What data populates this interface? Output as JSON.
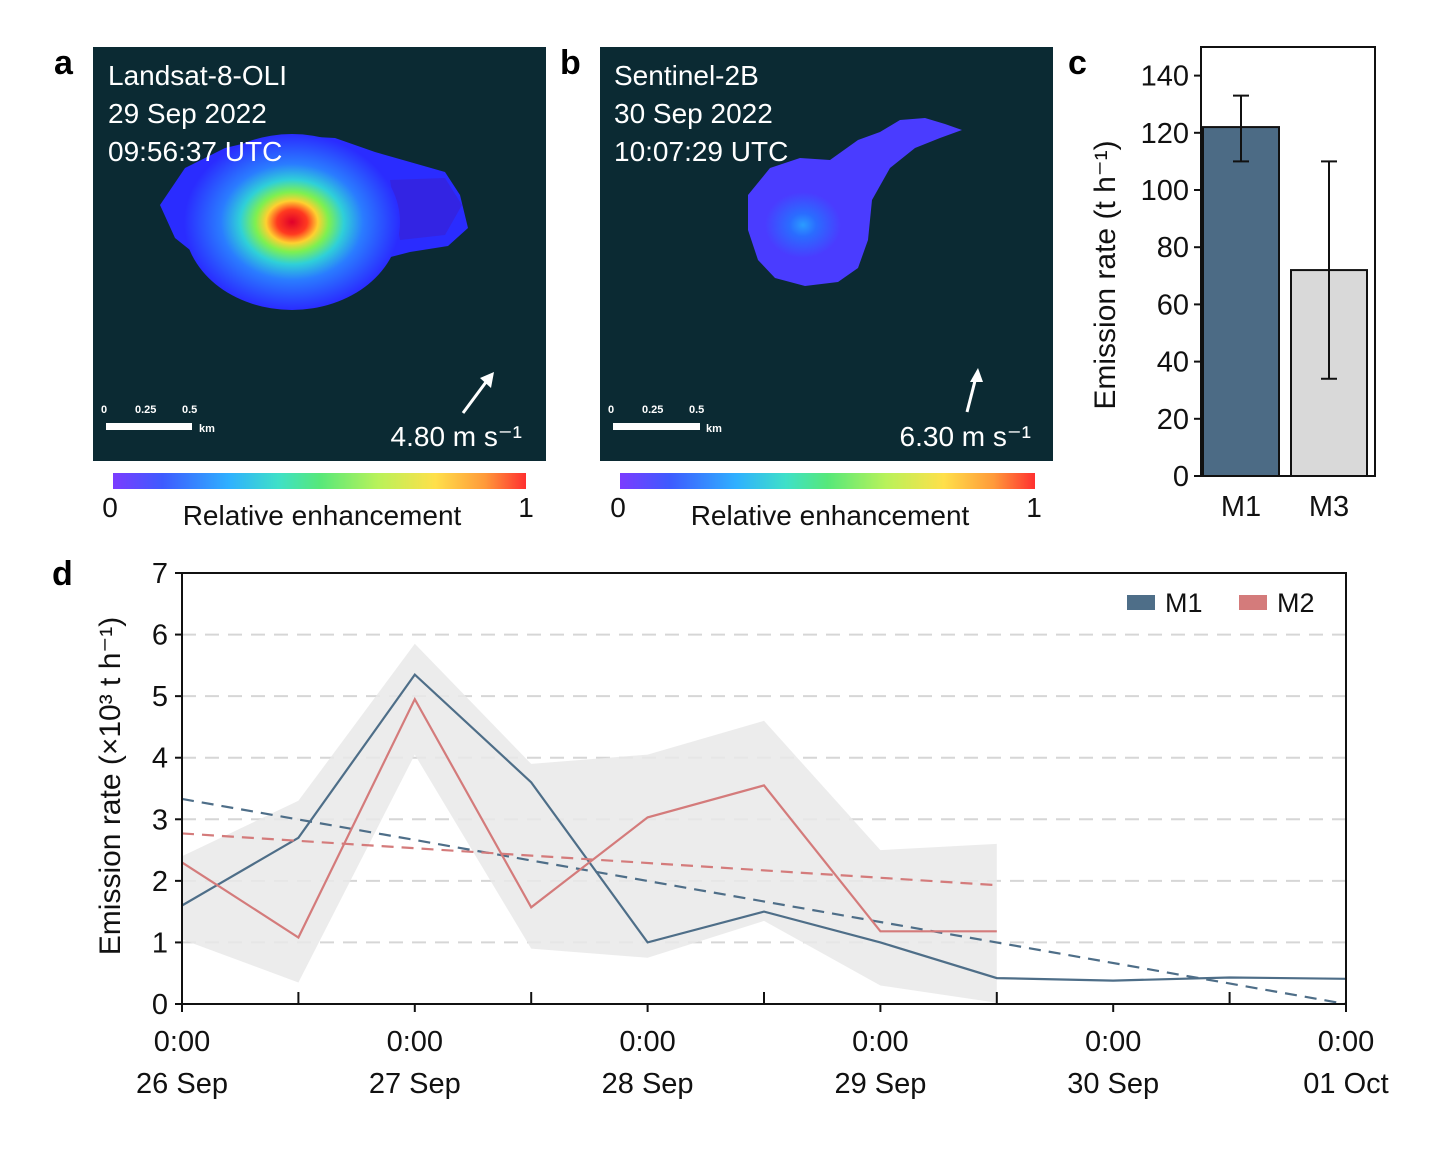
{
  "panels": {
    "a": {
      "letter": "a",
      "sensor": "Landsat-8-OLI",
      "date": "29 Sep 2022",
      "time": "09:56:37 UTC",
      "wind": "4.80 m s⁻¹",
      "scale_ticks": [
        "0",
        "0.25",
        "0.5"
      ],
      "scale_unit": "km",
      "cbar_min": "0",
      "cbar_max": "1",
      "cbar_label": "Relative enhancement"
    },
    "b": {
      "letter": "b",
      "sensor": "Sentinel-2B",
      "date": "30 Sep 2022",
      "time": "10:07:29 UTC",
      "wind": "6.30 m s⁻¹",
      "scale_ticks": [
        "0",
        "0.25",
        "0.5"
      ],
      "scale_unit": "km",
      "cbar_min": "0",
      "cbar_max": "1",
      "cbar_label": "Relative enhancement"
    },
    "c_letter": "c",
    "d_letter": "d"
  },
  "colors": {
    "image_bg": "#0b2a33",
    "m1": "#4e6e88",
    "m2": "#d47b7b",
    "m3_fill": "#d9d9d9",
    "m1_bar": "#4c6b85",
    "band": "#e9e9e9"
  },
  "chart_data": [
    {
      "id": "c",
      "type": "bar",
      "categories": [
        "M1",
        "M3"
      ],
      "values": [
        122,
        72
      ],
      "error_low": [
        110,
        34
      ],
      "error_high": [
        133,
        110
      ],
      "ylabel": "Emission rate (t h⁻¹)",
      "ylim": [
        0,
        150
      ],
      "yticks": [
        0,
        20,
        40,
        60,
        80,
        100,
        120,
        140
      ]
    },
    {
      "id": "d",
      "type": "line",
      "ylabel": "Emission rate (×10³ t h⁻¹)",
      "ylim": [
        0,
        7
      ],
      "yticks": [
        0,
        1,
        2,
        3,
        4,
        5,
        6,
        7
      ],
      "xlim": [
        0,
        5
      ],
      "xtick_positions": [
        0,
        1,
        2,
        3,
        4,
        5
      ],
      "xtick_time": [
        "0:00",
        "0:00",
        "0:00",
        "0:00",
        "0:00",
        "0:00"
      ],
      "xtick_date": [
        "26 Sep",
        "27 Sep",
        "28 Sep",
        "29 Sep",
        "30 Sep",
        "01 Oct"
      ],
      "minor_ticks": [
        0.5,
        1.5,
        2.5,
        3.5,
        4.5
      ],
      "grid": "horizontal dashed",
      "legend": "top-right",
      "series": [
        {
          "name": "M1",
          "x": [
            0,
            0.5,
            1,
            1.5,
            2,
            2.5,
            3,
            3.5,
            4,
            4.5,
            5
          ],
          "y": [
            1.6,
            2.7,
            5.35,
            3.6,
            1.0,
            1.5,
            1.0,
            0.42,
            0.38,
            0.43,
            0.41
          ],
          "trend": [
            [
              0,
              3.33
            ],
            [
              5,
              0.0
            ]
          ]
        },
        {
          "name": "M2",
          "x": [
            0,
            0.5,
            1,
            1.5,
            2,
            2.5,
            3,
            3.5
          ],
          "y": [
            2.3,
            1.08,
            4.95,
            1.57,
            3.03,
            3.55,
            1.18,
            1.18
          ],
          "trend": [
            [
              0,
              2.77
            ],
            [
              3.5,
              1.93
            ]
          ]
        }
      ],
      "uncertainty_band": {
        "x": [
          0,
          0.5,
          1,
          1.5,
          2,
          2.5,
          3,
          3.5
        ],
        "upper": [
          2.4,
          3.3,
          5.85,
          3.9,
          4.05,
          4.6,
          2.5,
          2.6
        ],
        "lower": [
          1.05,
          0.35,
          4.05,
          0.9,
          0.75,
          1.35,
          0.3,
          0.02
        ]
      }
    }
  ]
}
